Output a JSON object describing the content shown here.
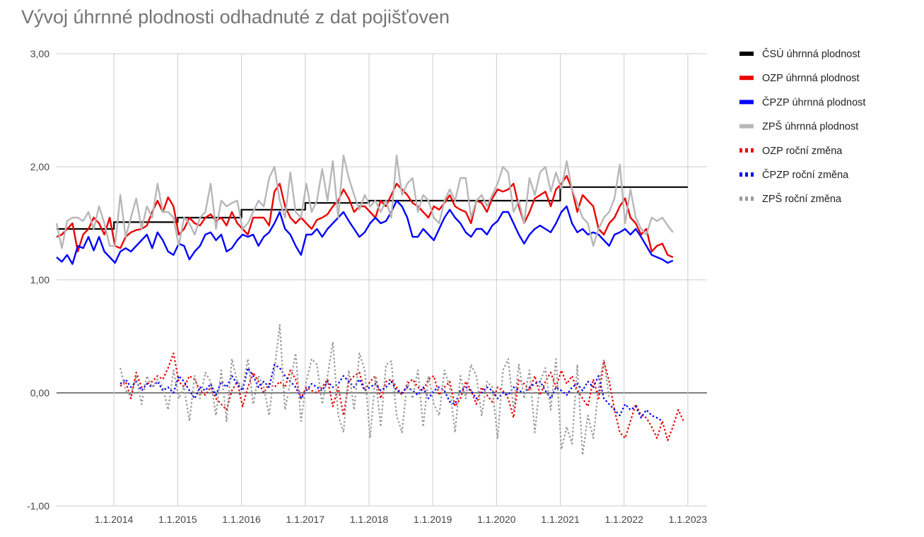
{
  "chart_data": {
    "type": "line",
    "title": "Vývoj úhrnné plodnosti odhadnuté z dat pojišťoven",
    "xlabel": "",
    "ylabel": "",
    "ylim": [
      -1,
      3
    ],
    "y_ticks": [
      3,
      2,
      1,
      0,
      -1
    ],
    "y_tick_labels": [
      "3,00",
      "2,00",
      "1,00",
      "0,00",
      "-1,00"
    ],
    "x_range": [
      "1.2.2013",
      "1.4.2023"
    ],
    "x_ticks": [
      "1.1.2014",
      "1.1.2015",
      "1.1.2016",
      "1.1.2017",
      "1.1.2018",
      "1.1.2019",
      "1.1.2020",
      "1.1.2021",
      "1.1.2022",
      "1.1.2023"
    ],
    "gridlines": true,
    "legend_position": "right",
    "series": [
      {
        "name": "ČSÚ úhrnná plodnost",
        "color": "#000000",
        "style": "step",
        "x": [
          2013.1,
          2014.0,
          2015.0,
          2016.0,
          2017.0,
          2018.0,
          2019.0,
          2020.0,
          2021.0,
          2022.0
        ],
        "values": [
          1.45,
          1.51,
          1.55,
          1.62,
          1.68,
          1.7,
          1.7,
          1.7,
          1.82,
          1.82
        ]
      },
      {
        "name": "OZP úhrnná plodnost",
        "color": "#ea0000",
        "style": "solid",
        "x_start": 2013.1,
        "x_step": 0.0833333,
        "values": [
          1.38,
          1.4,
          1.45,
          1.5,
          1.25,
          1.4,
          1.45,
          1.55,
          1.5,
          1.4,
          1.55,
          1.3,
          1.28,
          1.38,
          1.42,
          1.44,
          1.45,
          1.48,
          1.6,
          1.7,
          1.6,
          1.73,
          1.65,
          1.4,
          1.45,
          1.55,
          1.5,
          1.48,
          1.55,
          1.58,
          1.52,
          1.55,
          1.48,
          1.6,
          1.5,
          1.45,
          1.4,
          1.55,
          1.55,
          1.55,
          1.48,
          1.78,
          1.85,
          1.65,
          1.55,
          1.5,
          1.55,
          1.5,
          1.45,
          1.53,
          1.55,
          1.58,
          1.65,
          1.7,
          1.8,
          1.72,
          1.6,
          1.65,
          1.65,
          1.6,
          1.55,
          1.7,
          1.65,
          1.75,
          1.85,
          1.8,
          1.75,
          1.68,
          1.65,
          1.6,
          1.55,
          1.65,
          1.62,
          1.68,
          1.75,
          1.65,
          1.62,
          1.6,
          1.5,
          1.7,
          1.68,
          1.6,
          1.72,
          1.8,
          1.78,
          1.8,
          1.85,
          1.65,
          1.5,
          1.6,
          1.72,
          1.75,
          1.78,
          1.65,
          1.8,
          1.85,
          1.92,
          1.8,
          1.6,
          1.75,
          1.7,
          1.65,
          1.45,
          1.4,
          1.5,
          1.55,
          1.65,
          1.72,
          1.55,
          1.5,
          1.4,
          1.45,
          1.25,
          1.3,
          1.32,
          1.22,
          1.2
        ]
      },
      {
        "name": "ČPZP úhrnná plodnost",
        "color": "#0000ff",
        "style": "solid",
        "x_start": 2013.1,
        "x_step": 0.0833333,
        "values": [
          1.2,
          1.16,
          1.22,
          1.14,
          1.3,
          1.28,
          1.38,
          1.26,
          1.38,
          1.25,
          1.2,
          1.15,
          1.25,
          1.28,
          1.25,
          1.3,
          1.35,
          1.4,
          1.28,
          1.42,
          1.35,
          1.25,
          1.22,
          1.32,
          1.3,
          1.18,
          1.25,
          1.3,
          1.4,
          1.42,
          1.35,
          1.4,
          1.25,
          1.28,
          1.35,
          1.4,
          1.38,
          1.4,
          1.3,
          1.38,
          1.42,
          1.5,
          1.6,
          1.45,
          1.4,
          1.3,
          1.22,
          1.4,
          1.4,
          1.45,
          1.38,
          1.45,
          1.5,
          1.55,
          1.6,
          1.52,
          1.45,
          1.38,
          1.42,
          1.5,
          1.55,
          1.5,
          1.52,
          1.6,
          1.7,
          1.65,
          1.55,
          1.38,
          1.38,
          1.45,
          1.4,
          1.35,
          1.45,
          1.55,
          1.62,
          1.55,
          1.5,
          1.42,
          1.38,
          1.45,
          1.45,
          1.4,
          1.48,
          1.52,
          1.6,
          1.6,
          1.5,
          1.4,
          1.32,
          1.4,
          1.45,
          1.48,
          1.45,
          1.42,
          1.5,
          1.6,
          1.65,
          1.5,
          1.42,
          1.45,
          1.4,
          1.42,
          1.4,
          1.35,
          1.3,
          1.4,
          1.42,
          1.45,
          1.4,
          1.45,
          1.38,
          1.3,
          1.22,
          1.2,
          1.18,
          1.15,
          1.17
        ]
      },
      {
        "name": "ZPŠ úhrnná plodnost",
        "color": "#b7b7b7",
        "style": "solid",
        "x_start": 2013.1,
        "x_step": 0.0833333,
        "values": [
          1.5,
          1.28,
          1.52,
          1.55,
          1.55,
          1.52,
          1.6,
          1.45,
          1.65,
          1.5,
          1.3,
          1.3,
          1.75,
          1.38,
          1.55,
          1.72,
          1.45,
          1.65,
          1.55,
          1.85,
          1.6,
          1.6,
          1.55,
          1.3,
          1.55,
          1.5,
          1.4,
          1.55,
          1.6,
          1.85,
          1.45,
          1.7,
          1.65,
          1.68,
          1.7,
          1.45,
          1.5,
          1.6,
          1.7,
          1.65,
          1.9,
          2.0,
          1.7,
          1.55,
          1.95,
          1.6,
          1.55,
          1.85,
          1.6,
          1.7,
          1.98,
          1.7,
          2.05,
          1.55,
          2.1,
          1.9,
          1.75,
          1.62,
          1.75,
          1.65,
          1.7,
          1.6,
          1.7,
          1.55,
          2.1,
          1.75,
          1.85,
          1.9,
          1.6,
          1.75,
          1.7,
          1.55,
          1.5,
          1.7,
          1.8,
          1.7,
          1.9,
          1.9,
          1.55,
          1.7,
          1.75,
          1.65,
          1.75,
          1.85,
          2.0,
          1.95,
          1.6,
          1.7,
          1.5,
          1.9,
          1.75,
          1.95,
          2.0,
          1.78,
          1.95,
          1.8,
          2.05,
          1.8,
          1.68,
          1.55,
          1.5,
          1.3,
          1.45,
          1.55,
          1.6,
          1.72,
          2.02,
          1.5,
          1.8,
          1.55,
          1.45,
          1.4,
          1.55,
          1.52,
          1.55,
          1.48,
          1.42
        ]
      },
      {
        "name": "OZP roční změna",
        "color": "#ea0000",
        "style": "dotted",
        "x_start": 2014.1,
        "x_step": 0.0833333,
        "values": [
          0.06,
          0.1,
          -0.05,
          0.18,
          0.05,
          0.08,
          0.1,
          0.15,
          0.12,
          0.22,
          0.35,
          0.1,
          0.05,
          0.15,
          0.12,
          0.02,
          -0.02,
          0.05,
          -0.05,
          -0.1,
          -0.15,
          0.02,
          0.1,
          -0.12,
          0.05,
          0.18,
          0.1,
          0.0,
          0.08,
          0.05,
          0.1,
          0.05,
          0.2,
          0.12,
          -0.05,
          0.05,
          0.02,
          0.0,
          0.05,
          0.12,
          -0.12,
          0.05,
          -0.2,
          0.1,
          0.15,
          0.18,
          0.02,
          0.1,
          0.15,
          -0.05,
          0.1,
          0.12,
          0.05,
          -0.02,
          0.08,
          0.12,
          0.05,
          0.02,
          0.12,
          0.15,
          -0.02,
          0.05,
          0.1,
          -0.12,
          -0.05,
          0.1,
          0.02,
          -0.1,
          0.05,
          -0.02,
          -0.08,
          0.05,
          0.02,
          -0.05,
          -0.22,
          0.12,
          0.08,
          0.02,
          0.15,
          -0.02,
          0.1,
          0.18,
          0.05,
          0.2,
          0.08,
          0.15,
          0.02,
          -0.05,
          -0.12,
          0.12,
          -0.05,
          0.28,
          0.1,
          -0.15,
          -0.35,
          -0.4,
          -0.25,
          -0.1,
          -0.2,
          -0.22,
          -0.3,
          -0.4,
          -0.25,
          -0.42,
          -0.3,
          -0.15,
          -0.25
        ]
      },
      {
        "name": "ČPZP roční změna",
        "color": "#0000ff",
        "style": "dotted",
        "x_start": 2014.1,
        "x_step": 0.0833333,
        "values": [
          0.08,
          0.12,
          0.05,
          0.1,
          0.02,
          0.08,
          0.05,
          0.1,
          0.02,
          0.05,
          0.0,
          0.15,
          0.1,
          0.02,
          -0.05,
          0.05,
          0.02,
          0.08,
          -0.02,
          0.1,
          0.05,
          0.15,
          0.08,
          0.02,
          0.22,
          0.15,
          0.05,
          0.1,
          0.05,
          0.25,
          0.22,
          0.15,
          0.1,
          0.05,
          -0.05,
          0.02,
          0.08,
          0.05,
          0.02,
          0.1,
          0.05,
          0.08,
          0.15,
          0.1,
          0.05,
          0.12,
          0.02,
          0.05,
          0.08,
          0.02,
          0.05,
          0.1,
          0.02,
          0.0,
          0.05,
          0.02,
          -0.02,
          0.05,
          -0.05,
          0.02,
          0.05,
          0.02,
          -0.08,
          -0.1,
          0.02,
          0.05,
          0.02,
          -0.05,
          0.0,
          0.05,
          0.02,
          -0.05,
          0.0,
          -0.02,
          0.05,
          0.02,
          0.0,
          0.05,
          0.08,
          0.1,
          0.02,
          -0.05,
          0.05,
          0.02,
          -0.02,
          0.05,
          0.08,
          0.02,
          0.1,
          0.05,
          0.15,
          -0.05,
          -0.1,
          -0.15,
          -0.2,
          -0.1,
          -0.15,
          -0.12,
          -0.22,
          -0.15,
          -0.2,
          -0.22,
          -0.25
        ]
      },
      {
        "name": "ZPŠ roční změna",
        "color": "#999999",
        "style": "dotted",
        "x_start": 2014.1,
        "x_step": 0.0833333,
        "values": [
          0.22,
          0.02,
          -0.02,
          0.15,
          -0.1,
          0.15,
          0.05,
          0.12,
          0.05,
          -0.15,
          0.2,
          -0.05,
          0.05,
          -0.25,
          0.15,
          -0.05,
          0.18,
          0.1,
          -0.2,
          0.2,
          -0.25,
          0.3,
          0.1,
          0.05,
          0.3,
          -0.1,
          0.15,
          0.05,
          -0.2,
          0.2,
          0.6,
          -0.15,
          0.1,
          0.35,
          -0.25,
          0.1,
          0.3,
          0.25,
          -0.1,
          0.15,
          0.45,
          -0.2,
          -0.35,
          0.2,
          -0.15,
          0.35,
          0.2,
          -0.4,
          0.15,
          -0.3,
          0.25,
          0.28,
          -0.2,
          -0.35,
          0.1,
          -0.05,
          0.2,
          -0.3,
          0.15,
          -0.1,
          -0.2,
          0.2,
          0.05,
          -0.35,
          0.15,
          -0.05,
          0.25,
          0.15,
          -0.2,
          0.1,
          0.05,
          -0.4,
          0.2,
          0.3,
          -0.15,
          0.25,
          -0.05,
          0.2,
          -0.35,
          0.1,
          0.22,
          -0.15,
          0.3,
          -0.5,
          -0.3,
          -0.45,
          0.25,
          -0.55,
          -0.2,
          -0.4,
          0.05,
          0.3,
          -0.05
        ]
      }
    ]
  }
}
